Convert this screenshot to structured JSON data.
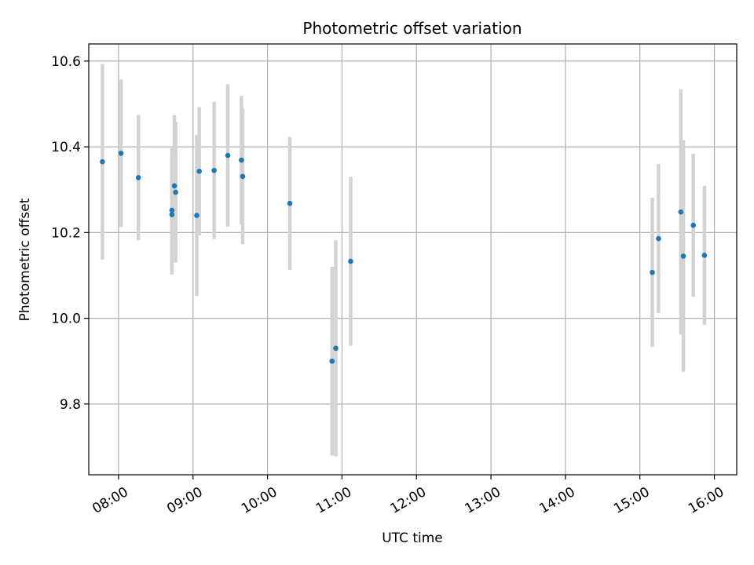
{
  "chart_data": {
    "type": "scatter",
    "title": "Photometric offset variation",
    "xlabel": "UTC time",
    "ylabel": "Photometric offset",
    "x_unit": "UTC time (HH:MM)",
    "xlim": [
      "07:36",
      "16:18"
    ],
    "ylim": [
      9.635,
      10.64
    ],
    "grid": true,
    "x_ticks": [
      "08:00",
      "09:00",
      "10:00",
      "11:00",
      "12:00",
      "13:00",
      "14:00",
      "15:00",
      "16:00"
    ],
    "y_ticks": [
      9.8,
      10.0,
      10.2,
      10.4,
      10.6
    ],
    "marker_color": "#1f77b4",
    "errorbar_color": "#d3d3d3",
    "points": [
      {
        "x": "07:47",
        "y": 10.365,
        "err": 0.228
      },
      {
        "x": "08:02",
        "y": 10.385,
        "err": 0.172
      },
      {
        "x": "08:16",
        "y": 10.328,
        "err": 0.146
      },
      {
        "x": "08:43",
        "y": 10.252,
        "err": 0.148
      },
      {
        "x": "08:43",
        "y": 10.242,
        "err": 0.14
      },
      {
        "x": "08:45",
        "y": 10.309,
        "err": 0.165
      },
      {
        "x": "08:46",
        "y": 10.294,
        "err": 0.164
      },
      {
        "x": "09:03",
        "y": 10.24,
        "err": 0.188
      },
      {
        "x": "09:05",
        "y": 10.343,
        "err": 0.15
      },
      {
        "x": "09:17",
        "y": 10.345,
        "err": 0.16
      },
      {
        "x": "09:28",
        "y": 10.38,
        "err": 0.166
      },
      {
        "x": "09:39",
        "y": 10.369,
        "err": 0.15
      },
      {
        "x": "09:40",
        "y": 10.331,
        "err": 0.158
      },
      {
        "x": "10:18",
        "y": 10.268,
        "err": 0.155
      },
      {
        "x": "10:52",
        "y": 9.9,
        "err": 0.22
      },
      {
        "x": "10:55",
        "y": 9.93,
        "err": 0.252
      },
      {
        "x": "11:07",
        "y": 10.133,
        "err": 0.197
      },
      {
        "x": "15:10",
        "y": 10.107,
        "err": 0.174
      },
      {
        "x": "15:15",
        "y": 10.186,
        "err": 0.174
      },
      {
        "x": "15:33",
        "y": 10.248,
        "err": 0.286
      },
      {
        "x": "15:35",
        "y": 10.145,
        "err": 0.27
      },
      {
        "x": "15:43",
        "y": 10.217,
        "err": 0.167
      },
      {
        "x": "15:52",
        "y": 10.147,
        "err": 0.162
      }
    ]
  }
}
